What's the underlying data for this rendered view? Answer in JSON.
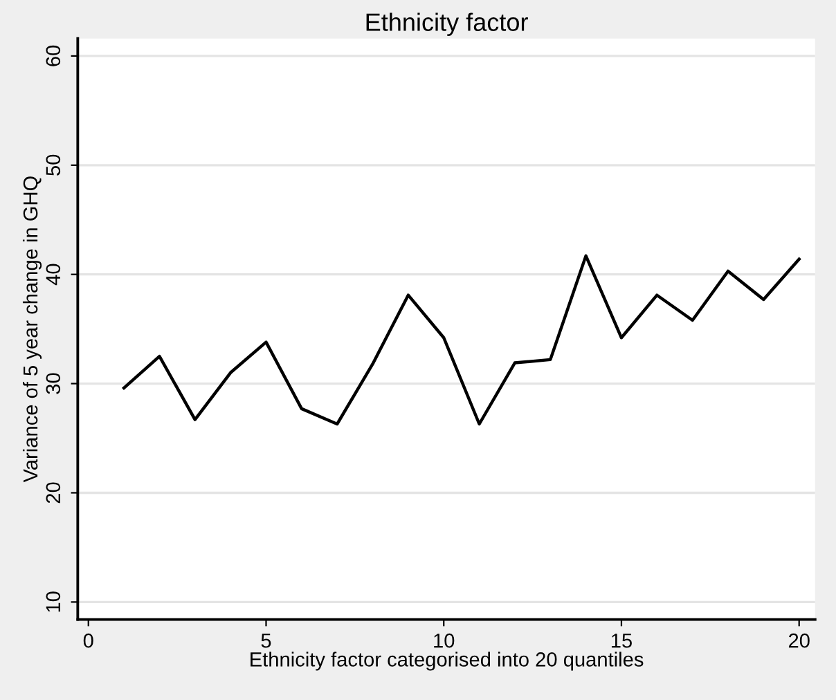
{
  "chart_data": {
    "type": "line",
    "title": "Ethnicity factor",
    "xlabel": "Ethnicity factor categorised into 20 quantiles",
    "ylabel": "Variance of 5 year change in GHQ",
    "x": [
      1,
      2,
      3,
      4,
      5,
      6,
      7,
      8,
      9,
      10,
      11,
      12,
      13,
      14,
      15,
      16,
      17,
      18,
      19,
      20
    ],
    "series": [
      {
        "color": "#000000",
        "values": [
          29.6,
          32.5,
          26.7,
          31,
          33.8,
          27.7,
          26.3,
          31.8,
          38.1,
          34.2,
          26.3,
          31.9,
          32.2,
          41.7,
          34.2,
          38.1,
          35.8,
          40.3,
          37.7,
          41.4
        ]
      }
    ],
    "xlim": [
      -0.3,
      20.45
    ],
    "ylim": [
      8.4,
      61.6
    ],
    "xticks": [
      0,
      5,
      10,
      15,
      20
    ],
    "yticks": [
      10,
      20,
      30,
      40,
      50,
      60
    ],
    "grid": "y",
    "legend": false,
    "marker": "none",
    "line_style": "solid"
  }
}
